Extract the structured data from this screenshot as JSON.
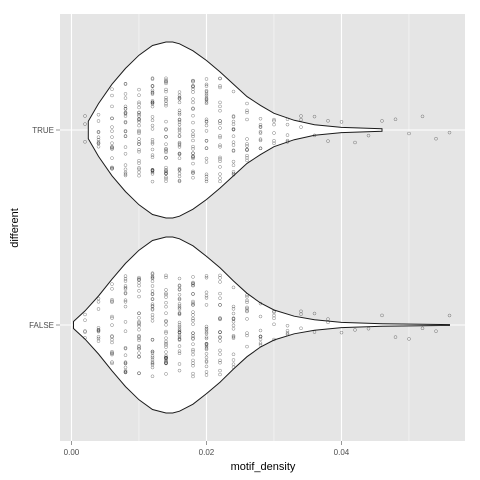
{
  "chart_data": {
    "type": "violin",
    "xlabel": "motif_density",
    "ylabel": "different",
    "x_range": [
      -0.0017,
      0.0583
    ],
    "x_ticks": [
      0.0,
      0.02,
      0.04
    ],
    "x_tick_labels": [
      "0.00",
      "0.02",
      "0.04"
    ],
    "categories": [
      "FALSE",
      "TRUE"
    ],
    "background": "#e5e5e5",
    "grid": true,
    "grid_color": "#ffffff",
    "violins": [
      {
        "category": "TRUE",
        "density_x": [
          0.0025,
          0.004,
          0.006,
          0.008,
          0.01,
          0.012,
          0.014,
          0.015,
          0.016,
          0.018,
          0.02,
          0.022,
          0.024,
          0.026,
          0.028,
          0.03,
          0.033,
          0.036,
          0.04,
          0.046
        ],
        "density_half_width": [
          0.1,
          0.3,
          0.52,
          0.7,
          0.85,
          0.96,
          1.0,
          1.0,
          0.98,
          0.9,
          0.79,
          0.66,
          0.52,
          0.38,
          0.28,
          0.19,
          0.11,
          0.06,
          0.03,
          0.015
        ]
      },
      {
        "category": "FALSE",
        "density_x": [
          0.0003,
          0.002,
          0.004,
          0.006,
          0.008,
          0.01,
          0.012,
          0.014,
          0.015,
          0.016,
          0.018,
          0.02,
          0.022,
          0.024,
          0.026,
          0.028,
          0.03,
          0.033,
          0.036,
          0.04,
          0.046,
          0.052,
          0.056
        ],
        "density_half_width": [
          0.04,
          0.16,
          0.33,
          0.52,
          0.7,
          0.85,
          0.96,
          1.0,
          1.0,
          0.98,
          0.9,
          0.78,
          0.65,
          0.5,
          0.36,
          0.25,
          0.17,
          0.1,
          0.06,
          0.03,
          0.015,
          0.008,
          0.004
        ]
      }
    ],
    "point_x_values": [
      0.002,
      0.004,
      0.006,
      0.008,
      0.01,
      0.012,
      0.014,
      0.016,
      0.018,
      0.02,
      0.022,
      0.024,
      0.026,
      0.028,
      0.03,
      0.032,
      0.034,
      0.036,
      0.038,
      0.04,
      0.042,
      0.044,
      0.046,
      0.048,
      0.05,
      0.052,
      0.054,
      0.056
    ]
  }
}
